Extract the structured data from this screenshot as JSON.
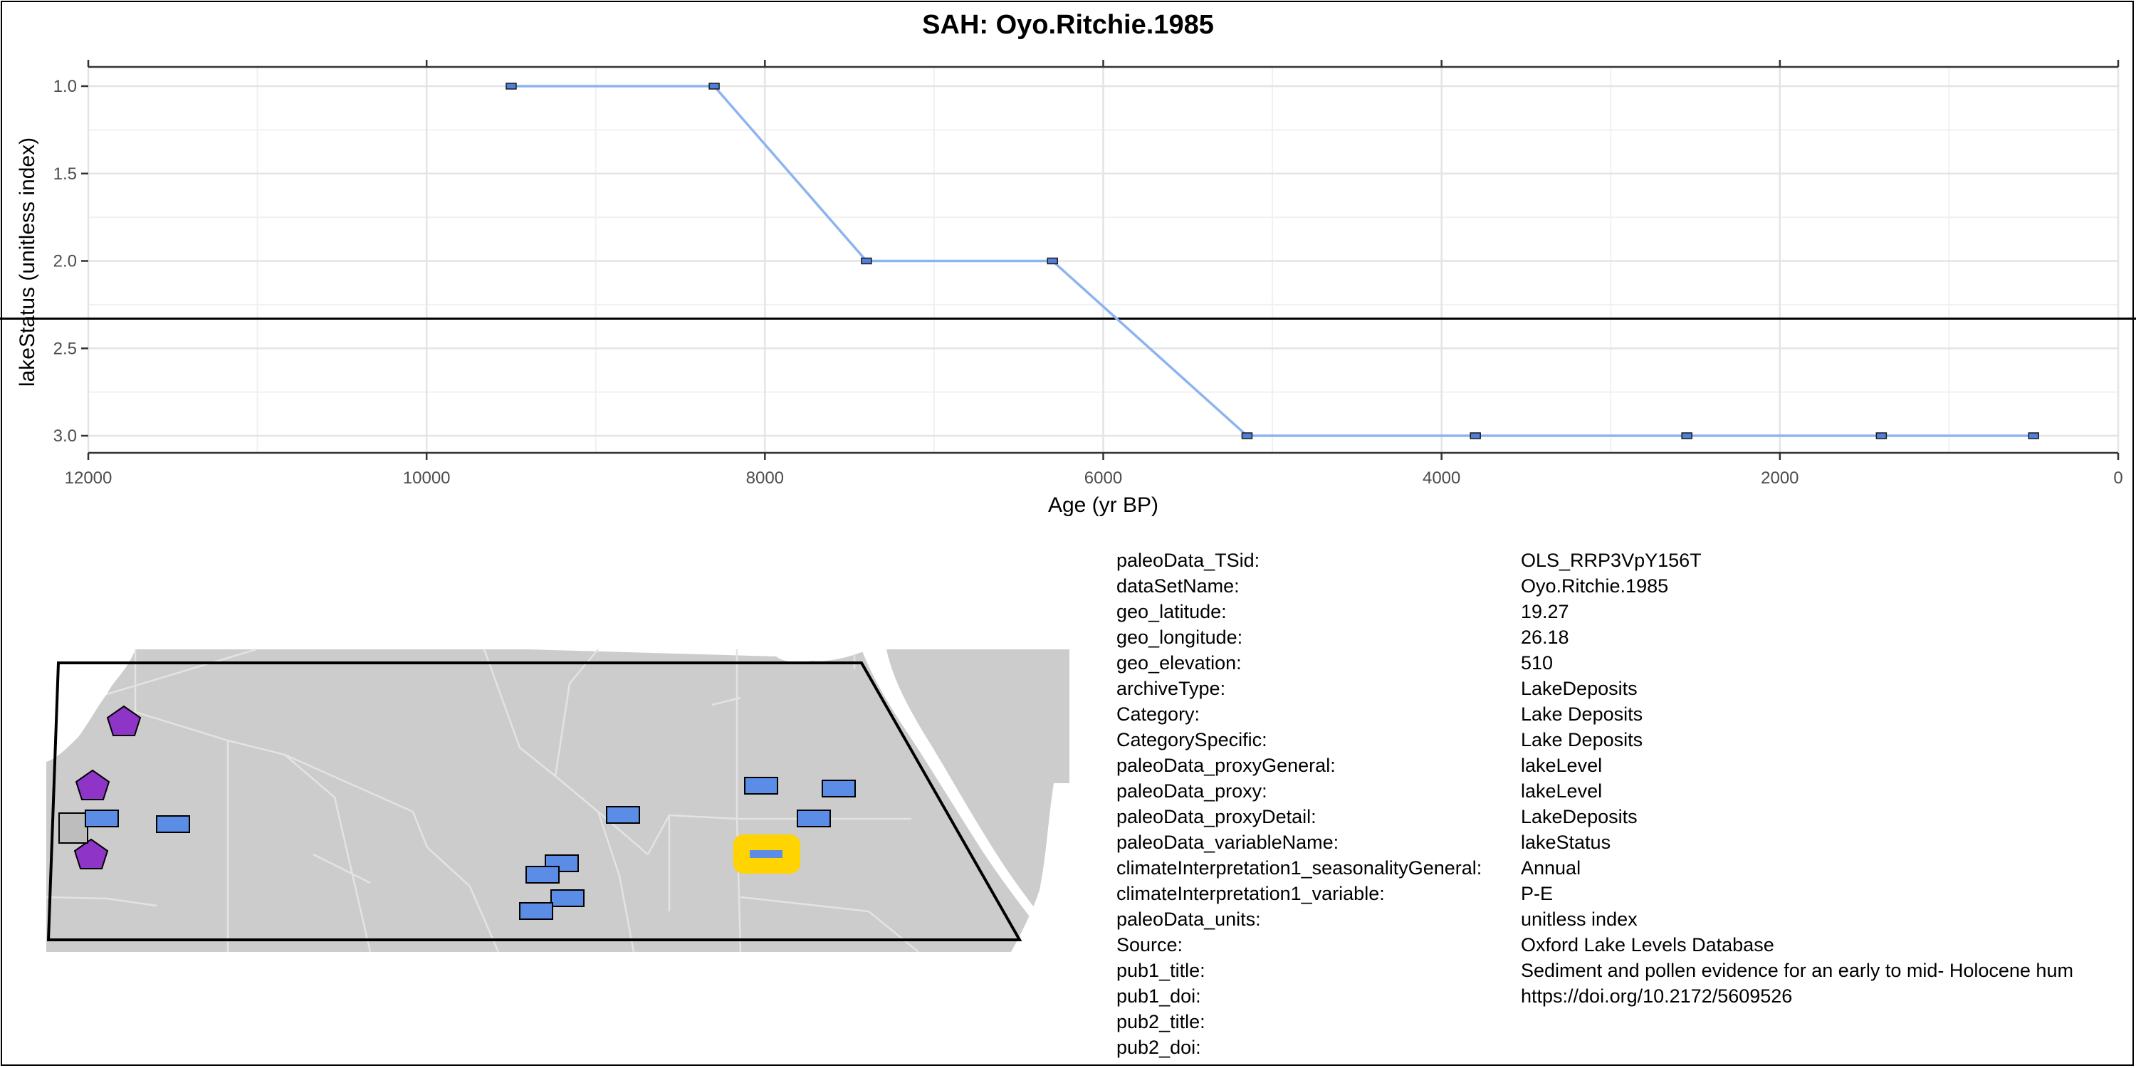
{
  "title": "SAH: Oyo.Ritchie.1985",
  "chart_data": {
    "type": "line",
    "xlabel": "Age (yr BP)",
    "ylabel": "lakeStatus (unitless index)",
    "xlim": [
      12000,
      0
    ],
    "ylim": [
      3.0,
      1.0
    ],
    "y_reversed": true,
    "x_reversed": true,
    "x_ticks": [
      12000,
      10000,
      8000,
      6000,
      4000,
      2000,
      0
    ],
    "x_tick_labels": [
      "12000",
      "10000",
      "8000",
      "6000",
      "4000",
      "2000",
      "0"
    ],
    "y_ticks": [
      1.0,
      1.5,
      2.0,
      2.5,
      3.0
    ],
    "y_tick_labels": [
      "1.0",
      "1.5",
      "2.0",
      "2.5",
      "3.0"
    ],
    "grid": true,
    "reference_line_y": 2.33,
    "line_color": "#8db4f0",
    "marker_color": "#4f7fd6",
    "series": [
      {
        "x": [
          9500,
          8300,
          7400,
          6300,
          5150,
          3800,
          2550,
          1400,
          500
        ],
        "y": [
          1.0,
          1.0,
          2.0,
          2.0,
          3.0,
          3.0,
          3.0,
          3.0,
          3.0
        ]
      }
    ]
  },
  "map": {
    "land_color": "#cccccc",
    "border_color": "#e2e2e2",
    "water_color": "#ffffff",
    "site_color": "#5b8de6",
    "highlight_color": "#ffd400",
    "other_archive_color": "#8e35c8",
    "gray_marker_color": "#bdbdbd"
  },
  "metadata": [
    {
      "key": "paleoData_TSid:",
      "value": "OLS_RRP3VpY156T"
    },
    {
      "key": "dataSetName:",
      "value": "Oyo.Ritchie.1985"
    },
    {
      "key": "geo_latitude:",
      "value": "19.27"
    },
    {
      "key": "geo_longitude:",
      "value": "26.18"
    },
    {
      "key": "geo_elevation:",
      "value": "510"
    },
    {
      "key": "archiveType:",
      "value": "LakeDeposits"
    },
    {
      "key": "Category:",
      "value": "Lake Deposits"
    },
    {
      "key": "CategorySpecific:",
      "value": "Lake Deposits"
    },
    {
      "key": "paleoData_proxyGeneral:",
      "value": "lakeLevel"
    },
    {
      "key": "paleoData_proxy:",
      "value": "lakeLevel"
    },
    {
      "key": "paleoData_proxyDetail:",
      "value": "LakeDeposits"
    },
    {
      "key": "paleoData_variableName:",
      "value": "lakeStatus"
    },
    {
      "key": "climateInterpretation1_seasonalityGeneral:",
      "value": "Annual"
    },
    {
      "key": "climateInterpretation1_variable:",
      "value": "P-E"
    },
    {
      "key": "paleoData_units:",
      "value": "unitless index"
    },
    {
      "key": "Source:",
      "value": "Oxford Lake Levels Database"
    },
    {
      "key": "pub1_title:",
      "value": "Sediment and pollen evidence for an early to mid-  Holocene hum"
    },
    {
      "key": "pub1_doi:",
      "value": "https://doi.org/10.2172/5609526"
    },
    {
      "key": "pub2_title:",
      "value": ""
    },
    {
      "key": "pub2_doi:",
      "value": ""
    }
  ]
}
